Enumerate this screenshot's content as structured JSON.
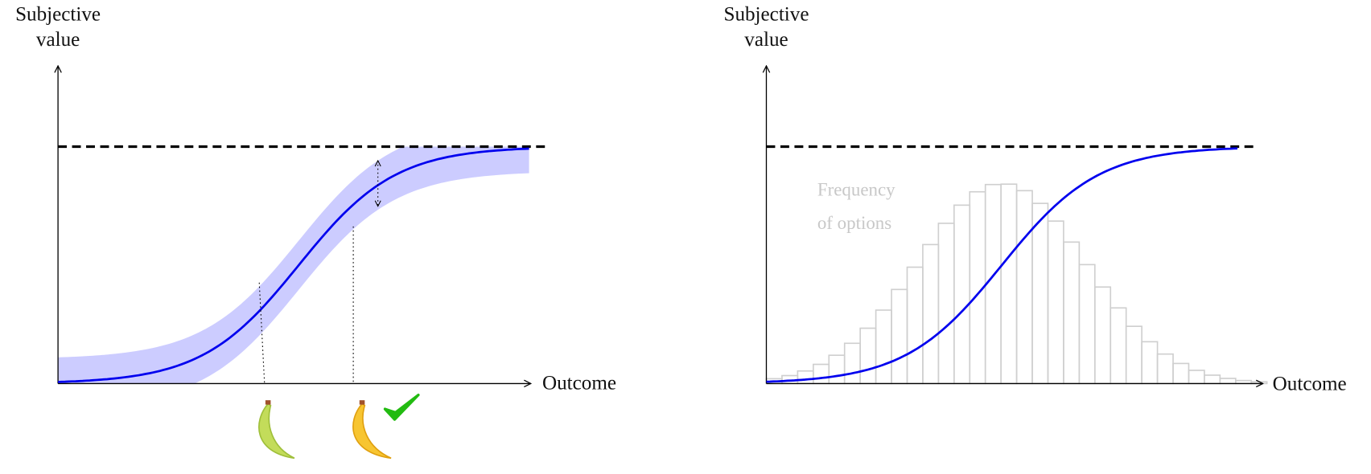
{
  "panels": [
    {
      "y_label": [
        "Subjective",
        "value"
      ],
      "x_label": "Outcome"
    },
    {
      "y_label": [
        "Subjective",
        "value"
      ],
      "x_label": "Outcome",
      "annotation": [
        "Frequency",
        "of options"
      ]
    }
  ]
}
